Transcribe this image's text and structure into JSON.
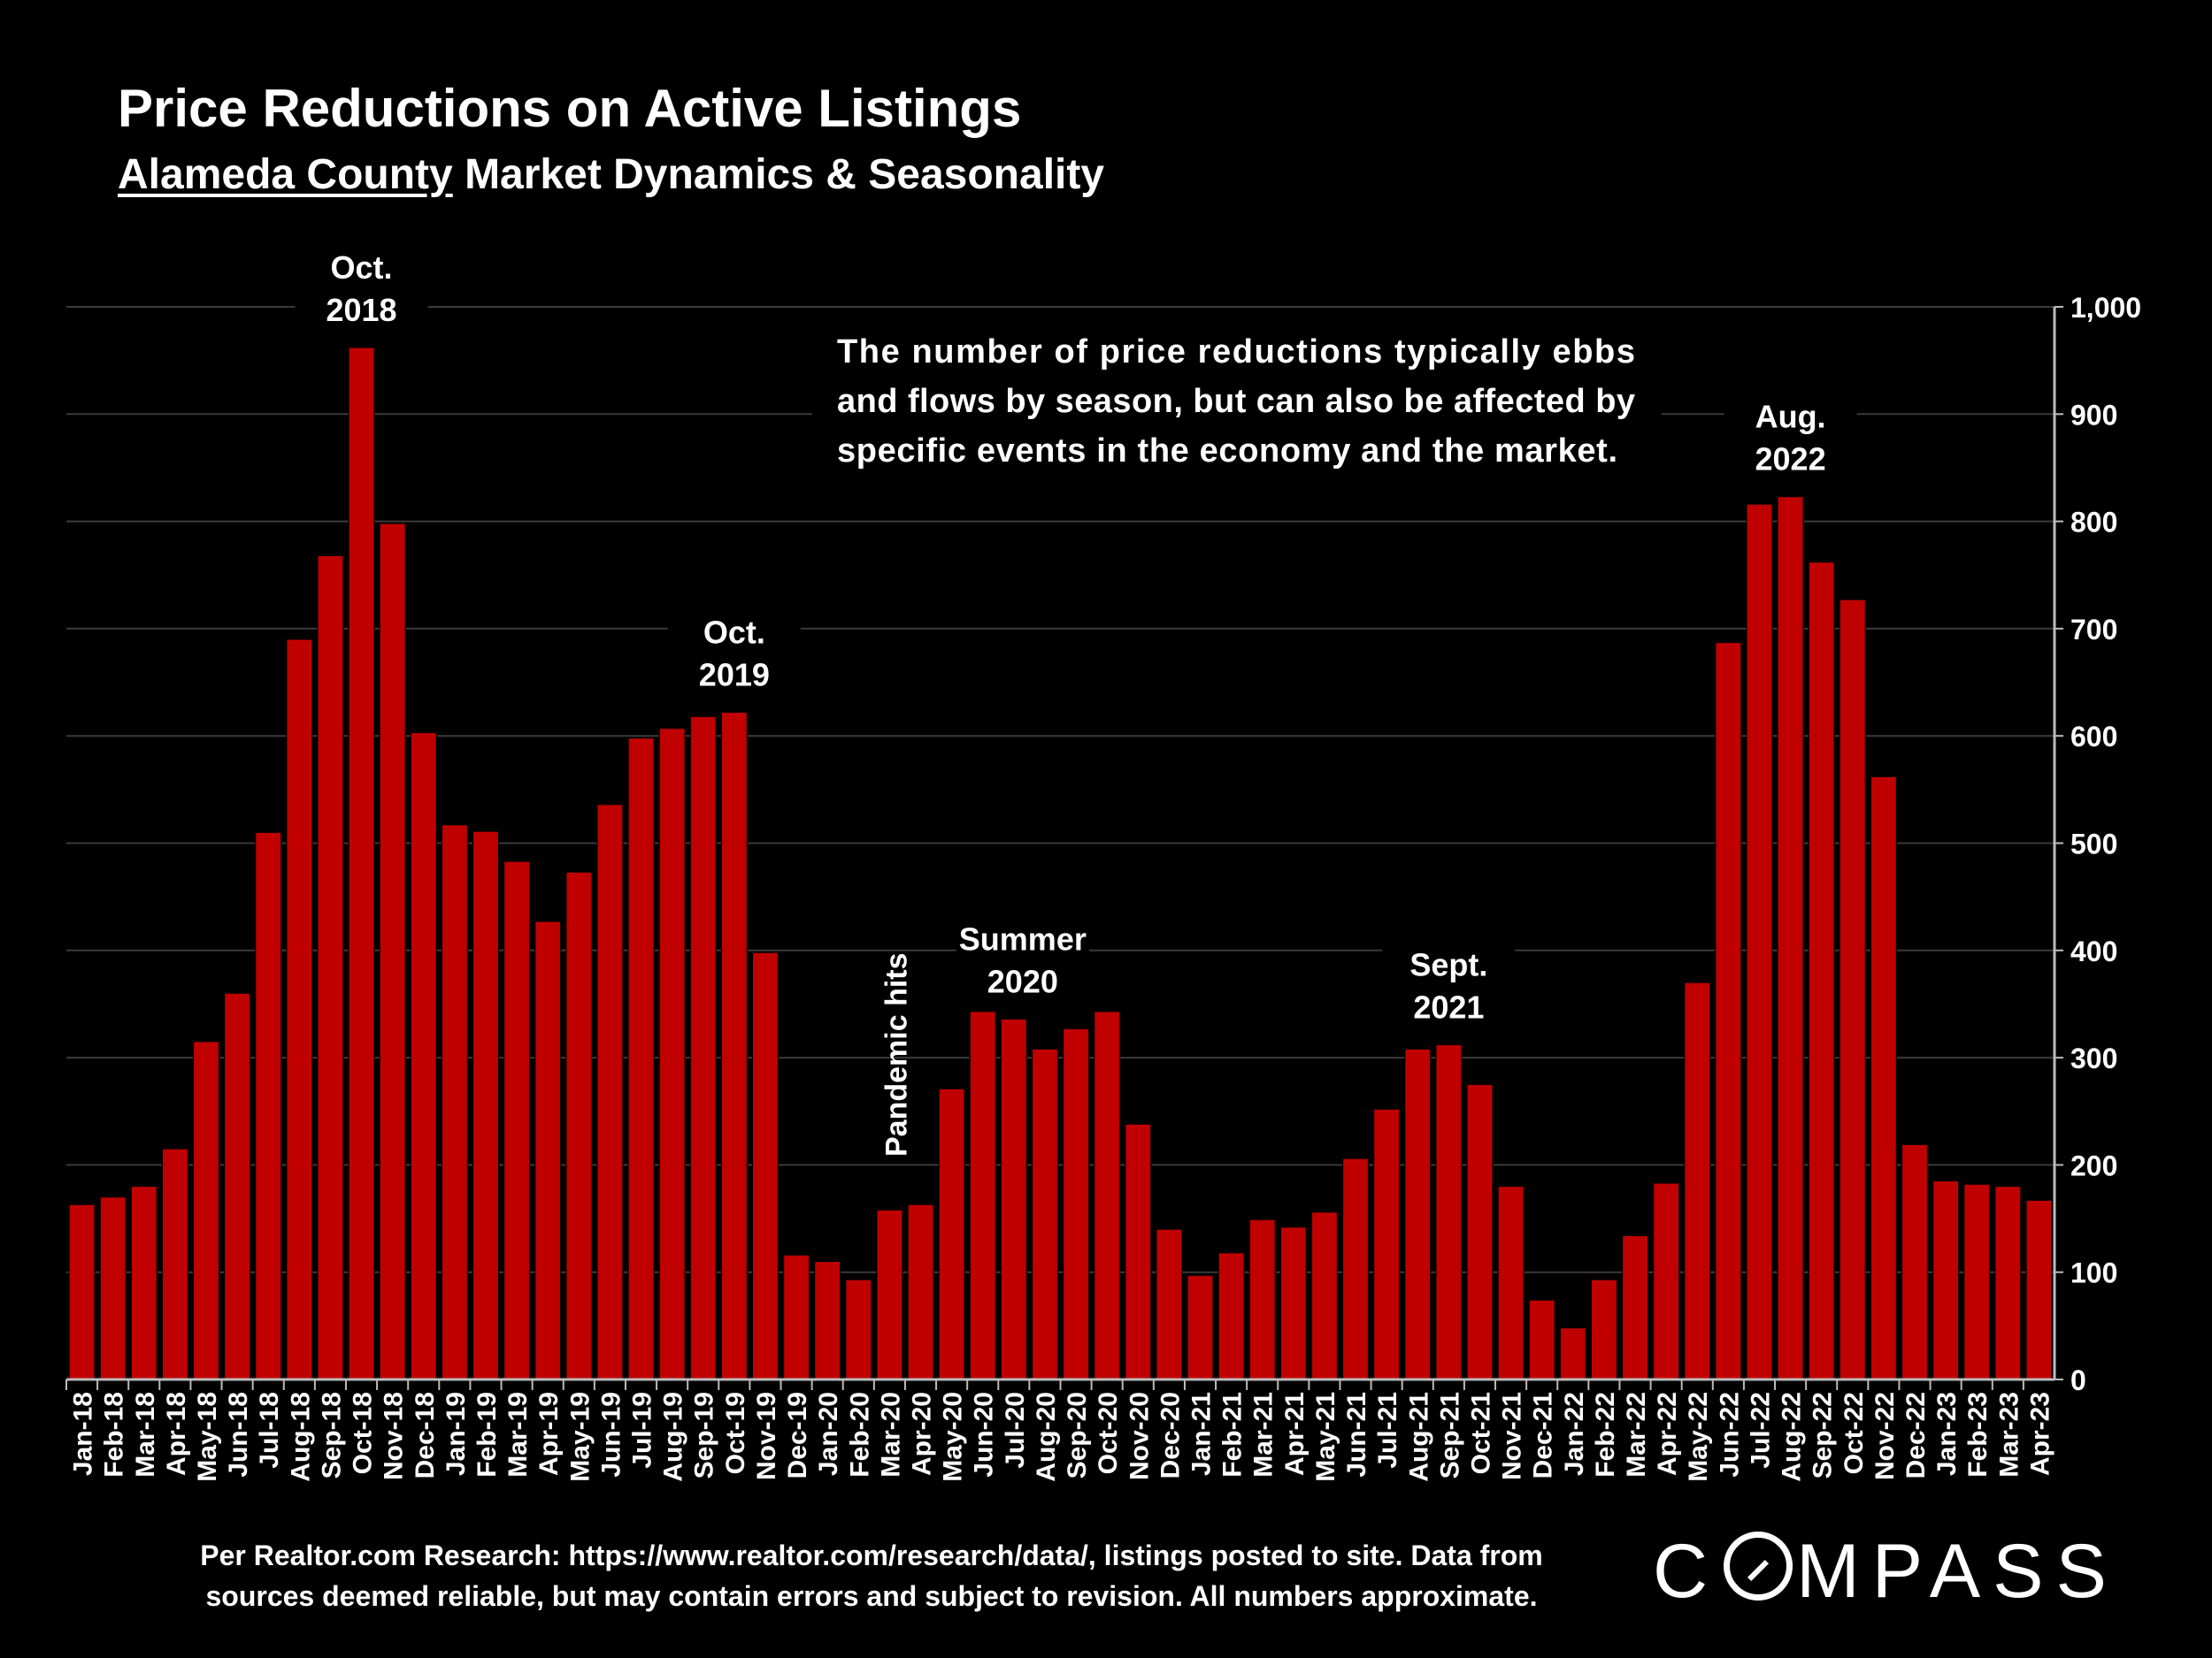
{
  "header": {
    "title": "Price Reductions on Active Listings",
    "subtitle_underlined": "Alameda County",
    "subtitle_rest": " Market Dynamics & Seasonality"
  },
  "footer": {
    "note_line1": "Per Realtor.com Research:  https://www.realtor.com/research/data/, listings posted to site. Data from",
    "note_line2": "sources deemed reliable, but may contain errors and subject to revision. All numbers approximate.",
    "logo_left": "C",
    "logo_right": "MPASS"
  },
  "chart_data": {
    "type": "bar",
    "title": "Price Reductions on Active Listings",
    "color": "#c00000",
    "ylim": [
      0,
      1000
    ],
    "yticks": [
      "0",
      "100",
      "200",
      "300",
      "400",
      "500",
      "600",
      "700",
      "800",
      "900",
      "1,000"
    ],
    "grid": true,
    "y_axis_side": "right",
    "categories": [
      "Jan-18",
      "Feb-18",
      "Mar-18",
      "Apr-18",
      "May-18",
      "Jun-18",
      "Jul-18",
      "Aug-18",
      "Sep-18",
      "Oct-18",
      "Nov-18",
      "Dec-18",
      "Jan-19",
      "Feb-19",
      "Mar-19",
      "Apr-19",
      "May-19",
      "Jun-19",
      "Jul-19",
      "Aug-19",
      "Sep-19",
      "Oct-19",
      "Nov-19",
      "Dec-19",
      "Jan-20",
      "Feb-20",
      "Mar-20",
      "Apr-20",
      "May-20",
      "Jun-20",
      "Jul-20",
      "Aug-20",
      "Sep-20",
      "Oct-20",
      "Nov-20",
      "Dec-20",
      "Jan-21",
      "Feb-21",
      "Mar-21",
      "Apr-21",
      "May-21",
      "Jun-21",
      "Jul-21",
      "Aug-21",
      "Sep-21",
      "Oct-21",
      "Nov-21",
      "Dec-21",
      "Jan-22",
      "Feb-22",
      "Mar-22",
      "Apr-22",
      "May-22",
      "Jun-22",
      "Jul-22",
      "Aug-22",
      "Sep-22",
      "Oct-22",
      "Nov-22",
      "Dec-22",
      "Jan-23",
      "Feb-23",
      "Mar-23",
      "Apr-23"
    ],
    "values": [
      163,
      170,
      180,
      215,
      315,
      360,
      510,
      690,
      768,
      962,
      798,
      603,
      517,
      511,
      483,
      427,
      473,
      536,
      598,
      607,
      618,
      622,
      398,
      116,
      110,
      93,
      158,
      163,
      271,
      361,
      336,
      308,
      327,
      343,
      238,
      140,
      97,
      118,
      149,
      142,
      156,
      206,
      252,
      308,
      312,
      275,
      180,
      74,
      48,
      93,
      134,
      183,
      370,
      687,
      816,
      823,
      762,
      727,
      562,
      219,
      185,
      182,
      180,
      167
    ],
    "annotations": [
      {
        "lines": [
          "Oct.",
          "2018"
        ],
        "category": "Oct-18"
      },
      {
        "lines": [
          "Oct.",
          "2019"
        ],
        "category": "Oct-19"
      },
      {
        "lines": [
          "Summer",
          "2020"
        ],
        "category": "Jul-20"
      },
      {
        "lines": [
          "Sept.",
          "2021"
        ],
        "category": "Sep-21"
      },
      {
        "lines": [
          "Aug.",
          "2022"
        ],
        "category": "Aug-22"
      },
      {
        "lines": [
          "Pandemic hits"
        ],
        "category": "Mar-20",
        "rotated": true
      }
    ],
    "callout": [
      "The number of price reductions typically ebbs",
      "and flows by season, but can also be affected by",
      "specific events in the economy and the market."
    ]
  }
}
